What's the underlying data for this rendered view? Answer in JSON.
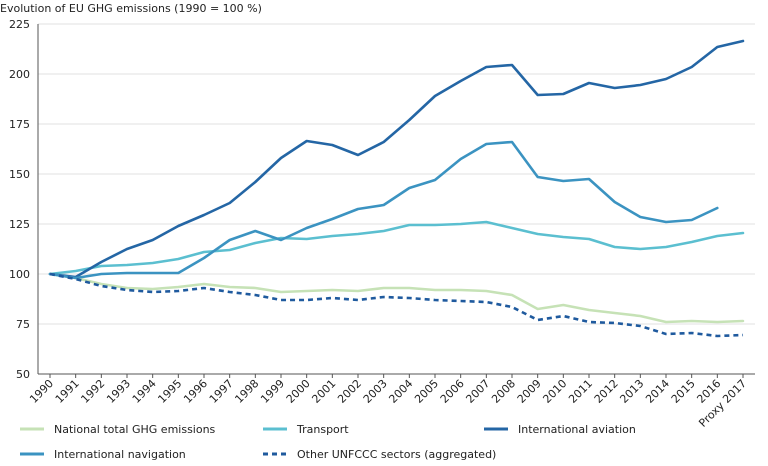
{
  "chart_data": {
    "type": "line",
    "title": "Evolution of EU GHG emissions (1990 = 100 %)",
    "xlabel": "",
    "ylabel": "",
    "categories": [
      "1990",
      "1991",
      "1992",
      "1993",
      "1994",
      "1995",
      "1996",
      "1997",
      "1998",
      "1999",
      "2000",
      "2001",
      "2002",
      "2003",
      "2004",
      "2005",
      "2006",
      "2007",
      "2008",
      "2009",
      "2010",
      "2011",
      "2012",
      "2013",
      "2014",
      "2015",
      "2016",
      "Proxy 2017"
    ],
    "ylim": [
      50,
      225
    ],
    "yticks": [
      50,
      75,
      100,
      125,
      150,
      175,
      200,
      225
    ],
    "grid": "horizontal",
    "legend_position": "bottom",
    "series": [
      {
        "name": "National total GHG emissions",
        "color": "#c6e2b6",
        "style": "solid",
        "values": [
          100,
          98,
          95,
          93,
          92.5,
          93.5,
          95,
          93.5,
          93,
          91,
          91.5,
          92,
          91.5,
          93,
          93,
          92,
          92,
          91.5,
          89.5,
          82.5,
          84.5,
          82,
          80.5,
          79,
          76,
          76.5,
          76,
          76.5
        ]
      },
      {
        "name": "Transport",
        "color": "#5bbfd0",
        "style": "solid",
        "values": [
          100,
          101.5,
          104,
          104.5,
          105.5,
          107.5,
          111,
          112,
          115.5,
          118,
          117.5,
          119,
          120,
          121.5,
          124.5,
          124.5,
          125,
          126,
          123,
          120,
          118.5,
          117.5,
          113.5,
          112.5,
          113.5,
          116,
          119,
          120.5
        ]
      },
      {
        "name": "International aviation",
        "color": "#2466a5",
        "style": "solid",
        "values": [
          100,
          98.5,
          106,
          112.5,
          117,
          124,
          129.5,
          135.5,
          146,
          158,
          166.5,
          164.5,
          159.5,
          166,
          177,
          189,
          196.5,
          203.5,
          204.5,
          189.5,
          190,
          195.5,
          193,
          194.5,
          197.5,
          203.5,
          213.5,
          216.5
        ]
      },
      {
        "name": "International navigation",
        "color": "#3b93c1",
        "style": "solid",
        "values": [
          100,
          98,
          100,
          100.5,
          100.5,
          100.5,
          108,
          117,
          121.5,
          117,
          123,
          127.5,
          132.5,
          134.5,
          143,
          147,
          157.5,
          165,
          166,
          148.5,
          146.5,
          147.5,
          136,
          128.5,
          126,
          127,
          133,
          null
        ]
      },
      {
        "name": "Other UNFCCC sectors (aggregated)",
        "color": "#1f5a9e",
        "style": "dashed",
        "values": [
          100,
          97.5,
          94,
          92,
          91,
          91.5,
          93,
          91,
          89.5,
          87,
          87,
          88,
          87,
          88.5,
          88,
          87,
          86.5,
          86,
          83.5,
          77,
          79,
          76,
          75.5,
          74,
          70,
          70.5,
          69,
          69.5
        ]
      }
    ]
  }
}
